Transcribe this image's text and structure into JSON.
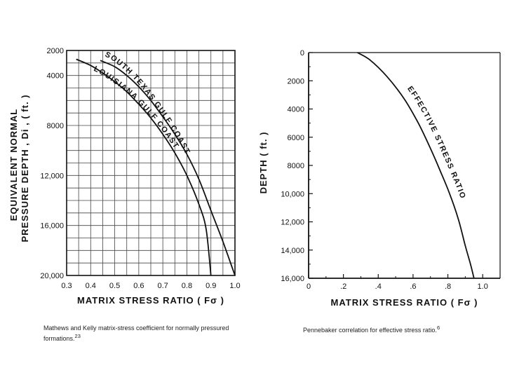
{
  "chart_data": [
    {
      "type": "line",
      "xlabel": "MATRIX STRESS RATIO ( Fσ )",
      "ylabel_lines": [
        "EQUIVALENT NORMAL",
        "PRESSURE DEPTH , Di , ( ft. )"
      ],
      "xlim": [
        0.3,
        1.0
      ],
      "ylim": [
        2000,
        20000
      ],
      "y_inverted": true,
      "x_ticks": [
        "0.3",
        "0.4",
        "0.5",
        "0.6",
        "0.7",
        "0.8",
        "0.9",
        "1.0"
      ],
      "y_ticks": [
        {
          "value": 2000,
          "label": "2000"
        },
        {
          "value": 4000,
          "label": "4000"
        },
        {
          "value": 8000,
          "label": "8000"
        },
        {
          "value": 12000,
          "label": "12,000"
        },
        {
          "value": 16000,
          "label": "16,000"
        },
        {
          "value": 20000,
          "label": "20,000"
        }
      ],
      "grid": true,
      "series": [
        {
          "name": "SOUTH TEXAS GULF COAST",
          "points": [
            [
              0.44,
              2800
            ],
            [
              0.5,
              3300
            ],
            [
              0.55,
              4000
            ],
            [
              0.6,
              4900
            ],
            [
              0.65,
              6000
            ],
            [
              0.7,
              7300
            ],
            [
              0.75,
              8700
            ],
            [
              0.8,
              10300
            ],
            [
              0.85,
              12300
            ],
            [
              0.9,
              14800
            ],
            [
              0.95,
              17300
            ],
            [
              1.0,
              20000
            ]
          ]
        },
        {
          "name": "LOUISIANA GULF COAST",
          "points": [
            [
              0.34,
              2700
            ],
            [
              0.4,
              3200
            ],
            [
              0.45,
              3800
            ],
            [
              0.5,
              4500
            ],
            [
              0.55,
              5300
            ],
            [
              0.6,
              6300
            ],
            [
              0.65,
              7400
            ],
            [
              0.7,
              8700
            ],
            [
              0.75,
              10200
            ],
            [
              0.8,
              12000
            ],
            [
              0.85,
              14300
            ],
            [
              0.88,
              16300
            ],
            [
              0.9,
              20000
            ]
          ]
        }
      ]
    },
    {
      "type": "line",
      "xlabel": "MATRIX STRESS RATIO ( Fσ )",
      "ylabel": "DEPTH ( ft. )",
      "xlim": [
        0,
        1.1
      ],
      "ylim": [
        0,
        16000
      ],
      "y_inverted": true,
      "x_ticks": [
        "0",
        ".2",
        ".4",
        ".6",
        ".8",
        "1.0"
      ],
      "y_ticks": [
        "0",
        "2000",
        "4000",
        "6000",
        "8000",
        "10,000",
        "12,000",
        "14,000",
        "16,000"
      ],
      "grid": false,
      "series": [
        {
          "name": "EFFECTIVE STRESS RATIO",
          "points": [
            [
              0.28,
              0
            ],
            [
              0.35,
              500
            ],
            [
              0.45,
              1700
            ],
            [
              0.55,
              3300
            ],
            [
              0.63,
              5000
            ],
            [
              0.7,
              6800
            ],
            [
              0.76,
              8500
            ],
            [
              0.81,
              10000
            ],
            [
              0.86,
              11800
            ],
            [
              0.9,
              13700
            ],
            [
              0.93,
              15000
            ],
            [
              0.95,
              16000
            ]
          ]
        }
      ]
    }
  ],
  "captions": {
    "left": "Mathews and Kelly matrix-stress coefficient for normally pressured formations.",
    "left_ref": "23",
    "right": "Pennebaker correlation for effective stress ratio.",
    "right_ref": "6"
  }
}
